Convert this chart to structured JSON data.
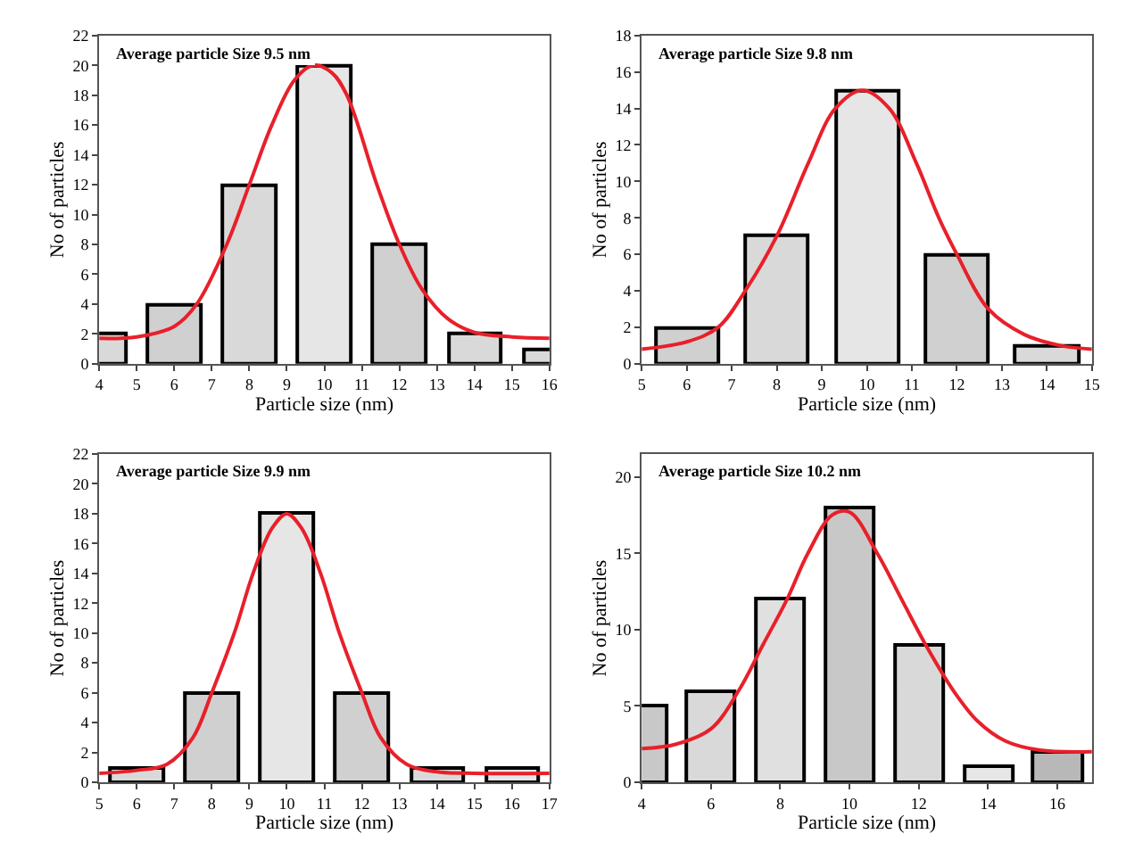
{
  "chart_data": [
    {
      "type": "bar",
      "xlabel": "Particle size (nm)",
      "ylabel": "No of particles",
      "annotations": [
        "Average particle Size 9.5 nm"
      ],
      "xlim": [
        4,
        16
      ],
      "xticks": [
        4,
        5,
        6,
        7,
        8,
        9,
        10,
        11,
        12,
        13,
        14,
        15,
        16
      ],
      "ylim": [
        0,
        22
      ],
      "yticks": [
        0,
        2,
        4,
        6,
        8,
        10,
        12,
        14,
        16,
        18,
        20,
        22
      ],
      "series": [
        {
          "x": [
            4,
            6,
            8,
            10,
            12,
            14,
            16
          ],
          "values": [
            2,
            4,
            12,
            20,
            8,
            2,
            1
          ],
          "colors": [
            "#d9d9d9",
            "#d0d0d0",
            "#d9d9d9",
            "#e6e6e6",
            "#d0d0d0",
            "#d9d9d9",
            "#d9d9d9"
          ]
        },
        {
          "type": "line",
          "color": "#e8202a",
          "x": [
            4,
            5,
            6,
            6.6,
            7.4,
            8,
            8.6,
            9.2,
            9.7,
            10.2,
            10.6,
            11.4,
            12,
            12.6,
            13.3,
            14,
            15,
            16
          ],
          "values": [
            1.7,
            1.8,
            2.5,
            4,
            8,
            12,
            16,
            19,
            20,
            19.5,
            18,
            12,
            8,
            5,
            3,
            2.1,
            1.8,
            1.7
          ]
        }
      ]
    },
    {
      "type": "bar",
      "xlabel": "Particle size (nm)",
      "ylabel": "No of particles",
      "annotations": [
        "Average particle Size 9.8 nm"
      ],
      "xlim": [
        5,
        15
      ],
      "xticks": [
        5,
        6,
        7,
        8,
        9,
        10,
        11,
        12,
        13,
        14,
        15
      ],
      "ylim": [
        0,
        18
      ],
      "yticks": [
        0,
        2,
        4,
        6,
        8,
        10,
        12,
        14,
        16,
        18
      ],
      "series": [
        {
          "x": [
            6,
            8,
            10,
            12,
            14
          ],
          "values": [
            2,
            7,
            15,
            6,
            1
          ],
          "colors": [
            "#d0d0d0",
            "#d9d9d9",
            "#e6e6e6",
            "#d0d0d0",
            "#d9d9d9"
          ]
        },
        {
          "type": "line",
          "color": "#e8202a",
          "x": [
            5,
            6,
            6.7,
            7.3,
            8,
            8.7,
            9.3,
            9.9,
            10.5,
            11.1,
            11.6,
            12,
            12.7,
            13.5,
            14.3,
            15
          ],
          "values": [
            0.8,
            1.2,
            2,
            4,
            7,
            11,
            14,
            15,
            14,
            11,
            8,
            6,
            3,
            1.6,
            1,
            0.8
          ]
        }
      ]
    },
    {
      "type": "bar",
      "xlabel": "Particle size (nm)",
      "ylabel": "No of particles",
      "annotations": [
        "Average particle Size 9.9 nm"
      ],
      "xlim": [
        5,
        17
      ],
      "xticks": [
        5,
        6,
        7,
        8,
        9,
        10,
        11,
        12,
        13,
        14,
        15,
        16,
        17
      ],
      "ylim": [
        0,
        22
      ],
      "yticks": [
        0,
        2,
        4,
        6,
        8,
        10,
        12,
        14,
        16,
        18,
        20,
        22
      ],
      "series": [
        {
          "x": [
            6,
            8,
            10,
            12,
            14,
            16
          ],
          "values": [
            1,
            6,
            18,
            6,
            1,
            1
          ],
          "colors": [
            "#d9d9d9",
            "#d0d0d0",
            "#e6e6e6",
            "#d0d0d0",
            "#d9d9d9",
            "#e6e6e6"
          ]
        },
        {
          "type": "line",
          "color": "#e8202a",
          "x": [
            5,
            6,
            6.8,
            7.5,
            8,
            8.6,
            9.1,
            9.6,
            10,
            10.4,
            10.9,
            11.4,
            12,
            12.5,
            13.2,
            14,
            15,
            17
          ],
          "values": [
            0.6,
            0.8,
            1.2,
            3,
            6,
            10,
            14,
            17,
            18,
            17,
            14,
            10,
            6,
            3,
            1.2,
            0.7,
            0.6,
            0.6
          ]
        }
      ]
    },
    {
      "type": "bar",
      "xlabel": "Particle size (nm)",
      "ylabel": "No of particles",
      "annotations": [
        "Average particle Size 10.2 nm"
      ],
      "xlim": [
        4,
        17
      ],
      "xticks": [
        4,
        6,
        8,
        10,
        12,
        14,
        16
      ],
      "ylim": [
        0,
        21.5
      ],
      "yticks": [
        0,
        5,
        10,
        15,
        20
      ],
      "series": [
        {
          "x": [
            4,
            6,
            8,
            10,
            12,
            14,
            16
          ],
          "values": [
            5,
            6,
            12,
            18,
            9,
            1,
            2
          ],
          "colors": [
            "#c8c8c8",
            "#d9d9d9",
            "#e0e0e0",
            "#c8c8c8",
            "#d9d9d9",
            "#e6e6e6",
            "#b8b8b8"
          ]
        },
        {
          "type": "line",
          "color": "#e8202a",
          "x": [
            4,
            5,
            6,
            6.8,
            7.5,
            8.2,
            8.8,
            9.5,
            10,
            10.8,
            11.5,
            12.2,
            13,
            13.7,
            14.5,
            15.5,
            17
          ],
          "values": [
            2.2,
            2.5,
            3.5,
            6,
            9,
            12,
            15,
            17.5,
            17.7,
            15,
            12,
            9,
            6,
            4,
            2.7,
            2.1,
            2
          ]
        }
      ]
    }
  ]
}
